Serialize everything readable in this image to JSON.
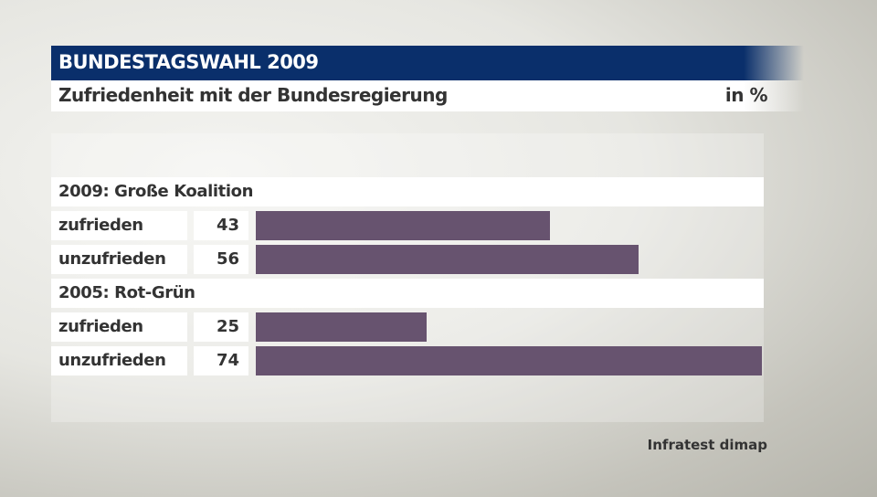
{
  "header": {
    "title": "BUNDESTAGSWAHL 2009",
    "subtitle": "Zufriedenheit mit der Bundesregierung",
    "unit": "in %"
  },
  "source": "Infratest dimap",
  "chart_data": {
    "type": "bar",
    "orientation": "horizontal",
    "xlim": [
      0,
      74
    ],
    "bar_color": "#67536f",
    "grid": false,
    "groups": [
      {
        "title": "2009: Große Koalition",
        "categories": [
          "zufrieden",
          "unzufrieden"
        ],
        "values": [
          43,
          56
        ]
      },
      {
        "title": "2005: Rot-Grün",
        "categories": [
          "zufrieden",
          "unzufrieden"
        ],
        "values": [
          25,
          74
        ]
      }
    ]
  }
}
